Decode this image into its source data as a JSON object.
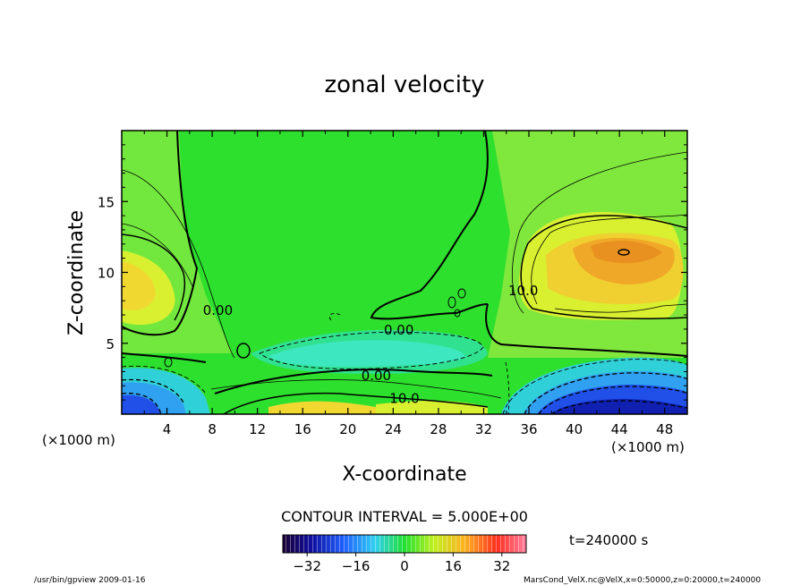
{
  "chart_data": {
    "type": "heatmap",
    "title": "zonal velocity",
    "xlabel": "X-coordinate",
    "ylabel": "Z-coordinate",
    "x_unit": "(×1000 m)",
    "y_unit": "(×1000 m)",
    "xlim": [
      0,
      50
    ],
    "ylim": [
      0,
      20
    ],
    "x_ticks": [
      "4",
      "8",
      "12",
      "16",
      "20",
      "24",
      "28",
      "32",
      "36",
      "40",
      "44",
      "48"
    ],
    "y_ticks": [
      "5",
      "10",
      "15"
    ],
    "contour_interval": "CONTOUR INTERVAL = 5.000E+00",
    "contour_labels": [
      {
        "text": "0.00",
        "x": 8.5,
        "z": 7.0
      },
      {
        "text": "0.00",
        "x": 24.5,
        "z": 5.6
      },
      {
        "text": "0.00",
        "x": 22.5,
        "z": 2.4
      },
      {
        "text": "10.0",
        "x": 25.0,
        "z": 0.8
      },
      {
        "text": "10.0",
        "x": 35.5,
        "z": 8.4
      }
    ],
    "time_label": "t=240000 s",
    "colorbar": {
      "min": -40,
      "max": 40,
      "ticks": [
        "-32",
        "-16",
        "0",
        "16",
        "32"
      ]
    },
    "field_description": {
      "max_positive_region": {
        "x_center": 44,
        "z_center": 11.5,
        "value_approx": 22
      },
      "left_positive_region": {
        "x_center": 1,
        "z_center": 10,
        "value_approx": 16
      },
      "bottom_negative_left": {
        "x_center": 2,
        "z_center": 0.8,
        "value_approx": -20
      },
      "bottom_negative_right": {
        "x_center": 42,
        "z_center": 1.2,
        "value_approx": -28
      },
      "mid_negative_layer": {
        "x_center": 24,
        "z_center": 4,
        "value_approx": -8
      }
    }
  },
  "footer": {
    "program": "/usr/bin/gpview   2009-01-16",
    "source": "MarsCond_VelX.nc@VelX,x=0:50000,z=0:20000,t=240000"
  }
}
